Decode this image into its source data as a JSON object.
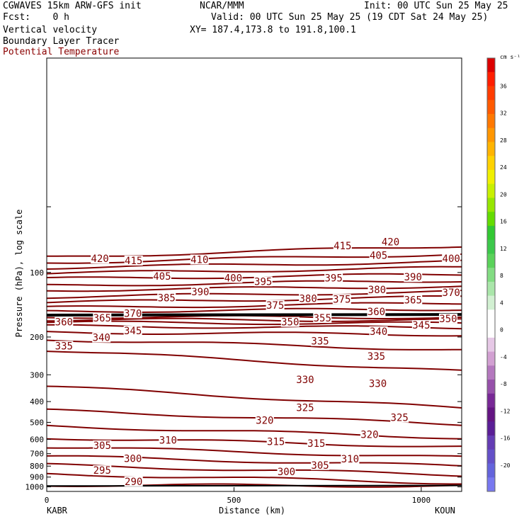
{
  "header": {
    "model": "CGWAVES 15km ARW-GFS init",
    "center": "NCAR/MMM",
    "init": "Init: 00 UTC Sun 25 May 25",
    "fcst": "Fcst:    0 h",
    "valid": "Valid: 00 UTC Sun 25 May 25 (19 CDT Sat 24 May 25)",
    "field1": "Vertical velocity",
    "xy": "XY= 187.4,173.8 to 191.8,100.1",
    "field2": "Boundary Layer Tracer",
    "field3": "Potential Temperature"
  },
  "colors": {
    "theta": "#800000",
    "axis": "#000000"
  },
  "chart_data": {
    "type": "line",
    "xlabel": "Distance (km)",
    "ylabel": "Pressure (hPa), log scale",
    "xlim": [
      0,
      1108
    ],
    "ylim": [
      1050,
      10
    ],
    "x_ticks": [
      0,
      500,
      1000
    ],
    "y_ticks": [
      100,
      200,
      300,
      400,
      500,
      600,
      700,
      800,
      900,
      1000
    ],
    "left_endpoint": "KABR",
    "right_endpoint": "KOUN",
    "colorbar": {
      "unit": "cm s⁻¹",
      "ticks": [
        "36",
        "32",
        "28",
        "24",
        "20",
        "16",
        "12",
        "8",
        "4",
        "0",
        "-4",
        "-8",
        "-12",
        "-16",
        "-20"
      ],
      "colors": [
        "#dc0000",
        "#ff1e00",
        "#ff3c00",
        "#ff5a00",
        "#ff7800",
        "#ff9600",
        "#ffb400",
        "#ffd200",
        "#f0f000",
        "#c8f000",
        "#96e600",
        "#64dc00",
        "#32c832",
        "#3cc84b",
        "#5ad25a",
        "#82dc82",
        "#aae6aa",
        "#d2f0d2",
        "#ffffff",
        "#ffffff",
        "#e6c8e6",
        "#d2a0d2",
        "#b478be",
        "#9650aa",
        "#782896",
        "#641482",
        "#5a1e96",
        "#643cb4",
        "#6450c8",
        "#6464dc",
        "#7878f0"
      ]
    },
    "isentropes_K": [
      290,
      295,
      300,
      305,
      310,
      315,
      320,
      325,
      330,
      335,
      340,
      345,
      350,
      355,
      360,
      365,
      370,
      375,
      380,
      385,
      390,
      395,
      400,
      405,
      410,
      415,
      420
    ],
    "contour_labels": [
      {
        "v": "420",
        "x": 142,
        "p": 86
      },
      {
        "v": "415",
        "x": 232,
        "p": 88
      },
      {
        "v": "410",
        "x": 408,
        "p": 87
      },
      {
        "v": "415",
        "x": 790,
        "p": 75
      },
      {
        "v": "420",
        "x": 918,
        "p": 72
      },
      {
        "v": "405",
        "x": 886,
        "p": 83
      },
      {
        "v": "400",
        "x": 1080,
        "p": 86
      },
      {
        "v": "405",
        "x": 308,
        "p": 104
      },
      {
        "v": "400",
        "x": 498,
        "p": 106
      },
      {
        "v": "395",
        "x": 578,
        "p": 110
      },
      {
        "v": "395",
        "x": 766,
        "p": 106
      },
      {
        "v": "390",
        "x": 410,
        "p": 123
      },
      {
        "v": "390",
        "x": 978,
        "p": 105
      },
      {
        "v": "385",
        "x": 320,
        "p": 131
      },
      {
        "v": "380",
        "x": 882,
        "p": 120
      },
      {
        "v": "375",
        "x": 610,
        "p": 142
      },
      {
        "v": "380",
        "x": 698,
        "p": 132
      },
      {
        "v": "375",
        "x": 788,
        "p": 133
      },
      {
        "v": "370",
        "x": 1080,
        "p": 124
      },
      {
        "v": "365",
        "x": 978,
        "p": 134
      },
      {
        "v": "370",
        "x": 230,
        "p": 155
      },
      {
        "v": "365",
        "x": 148,
        "p": 163
      },
      {
        "v": "360",
        "x": 46,
        "p": 170
      },
      {
        "v": "355",
        "x": 736,
        "p": 163
      },
      {
        "v": "360",
        "x": 880,
        "p": 152
      },
      {
        "v": "350",
        "x": 1072,
        "p": 164
      },
      {
        "v": "350",
        "x": 650,
        "p": 170
      },
      {
        "v": "345",
        "x": 230,
        "p": 187
      },
      {
        "v": "345",
        "x": 1000,
        "p": 176
      },
      {
        "v": "340",
        "x": 146,
        "p": 201
      },
      {
        "v": "340",
        "x": 886,
        "p": 188
      },
      {
        "v": "335",
        "x": 46,
        "p": 220
      },
      {
        "v": "335",
        "x": 730,
        "p": 209
      },
      {
        "v": "335",
        "x": 880,
        "p": 246
      },
      {
        "v": "330",
        "x": 690,
        "p": 316
      },
      {
        "v": "330",
        "x": 884,
        "p": 329
      },
      {
        "v": "325",
        "x": 690,
        "p": 426
      },
      {
        "v": "325",
        "x": 942,
        "p": 475
      },
      {
        "v": "320",
        "x": 582,
        "p": 489
      },
      {
        "v": "320",
        "x": 862,
        "p": 569
      },
      {
        "v": "315",
        "x": 612,
        "p": 615
      },
      {
        "v": "315",
        "x": 720,
        "p": 626
      },
      {
        "v": "310",
        "x": 324,
        "p": 604
      },
      {
        "v": "310",
        "x": 810,
        "p": 741
      },
      {
        "v": "305",
        "x": 148,
        "p": 640
      },
      {
        "v": "305",
        "x": 730,
        "p": 791
      },
      {
        "v": "300",
        "x": 230,
        "p": 736
      },
      {
        "v": "300",
        "x": 640,
        "p": 850
      },
      {
        "v": "295",
        "x": 148,
        "p": 837
      },
      {
        "v": "290",
        "x": 232,
        "p": 943
      }
    ]
  }
}
